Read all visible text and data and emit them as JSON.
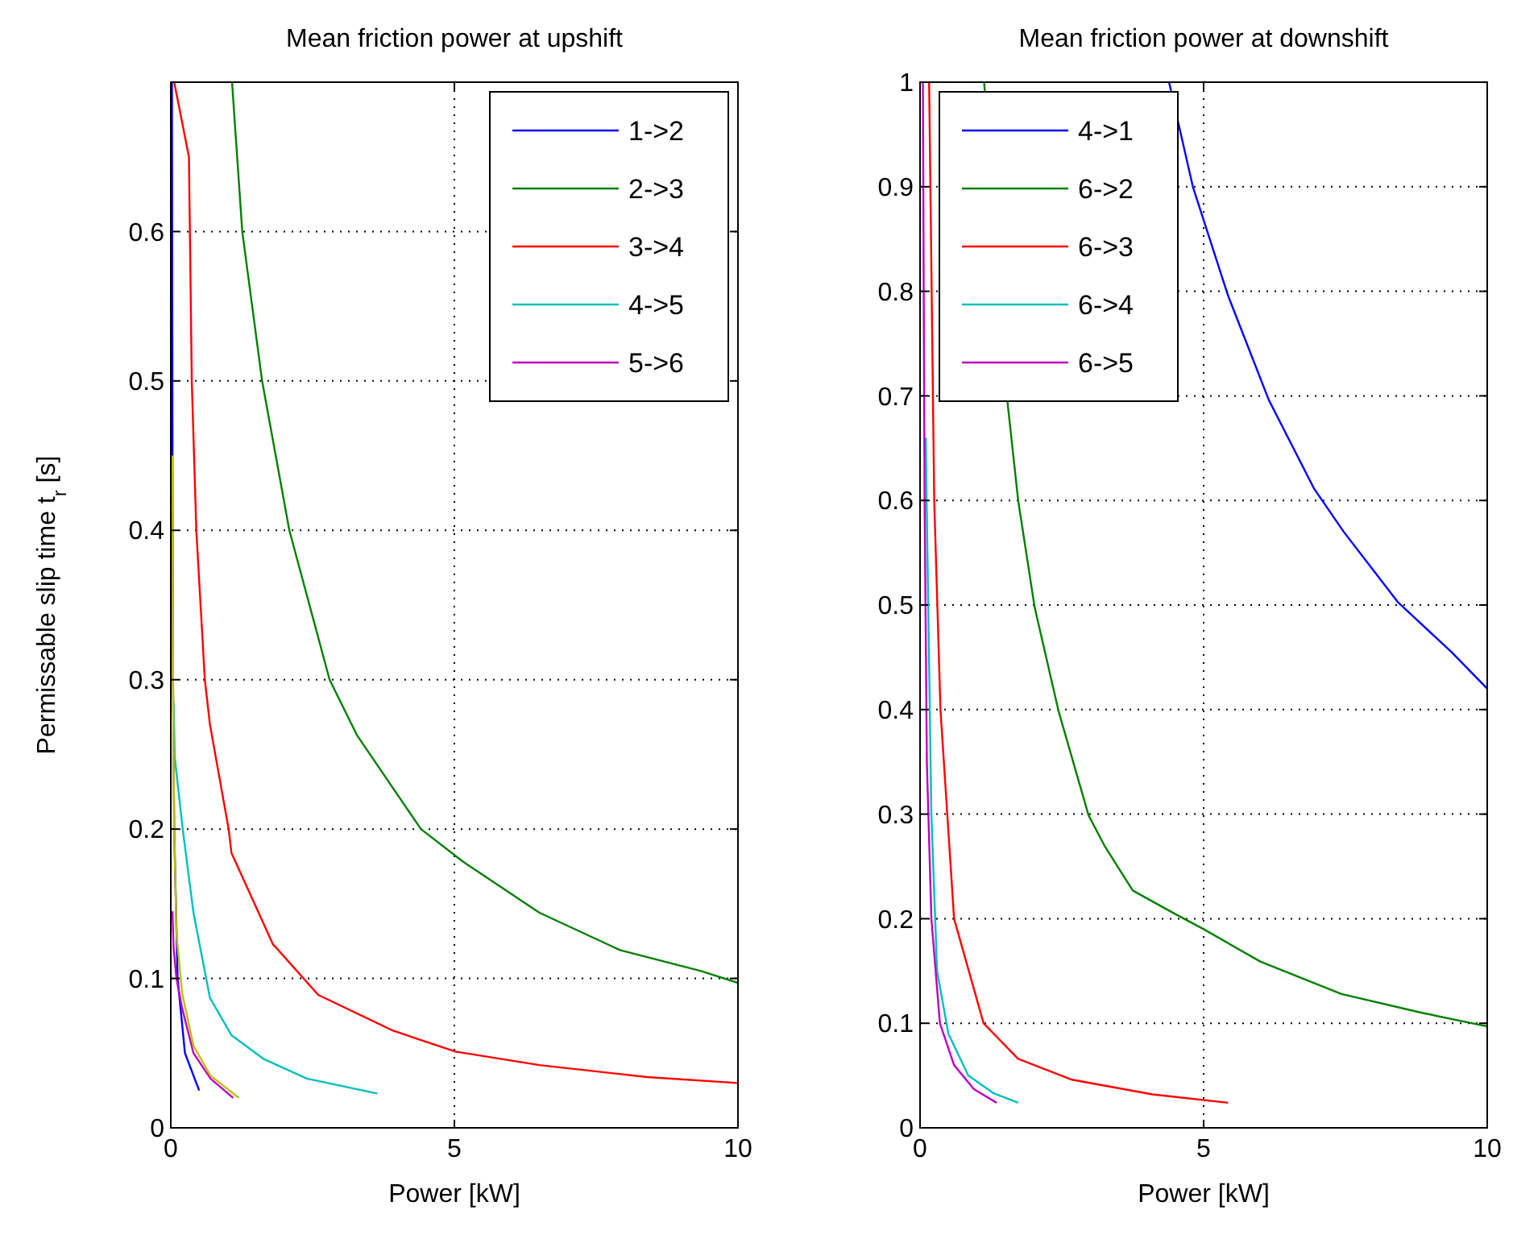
{
  "chart_data": [
    {
      "type": "line",
      "title": "Mean friction power at upshift",
      "xlabel": "Power [kW]",
      "ylabel": "Permissable slip time t$_{r}$ [s]",
      "xlim": [
        0,
        10
      ],
      "ylim": [
        0,
        0.7
      ],
      "xticks": [
        0,
        5,
        10
      ],
      "yticks": [
        0,
        0.1,
        0.2,
        0.3,
        0.4,
        0.5,
        0.6
      ],
      "grid": true,
      "legend": "top right",
      "line_style": "solid",
      "series": [
        {
          "name": "1->2",
          "color": "#0000ff",
          "x": [
            0.02,
            0.03,
            0.04,
            0.06,
            0.12,
            0.25,
            0.5
          ],
          "values": [
            0.7,
            0.45,
            0.3,
            0.2,
            0.1,
            0.05,
            0.025
          ]
        },
        {
          "name": "2->3",
          "color": "#008000",
          "x": [
            1.08,
            1.26,
            1.61,
            2.09,
            2.8,
            3.28,
            4.41,
            5.16,
            6.5,
            7.92,
            9.35,
            10
          ],
          "values": [
            0.7,
            0.6,
            0.5,
            0.4,
            0.3,
            0.263,
            0.2,
            0.178,
            0.144,
            0.119,
            0.105,
            0.097
          ]
        },
        {
          "name": "3->4",
          "color": "#ff0000",
          "x": [
            0.06,
            0.32,
            0.37,
            0.45,
            0.6,
            0.69,
            1.02,
            1.07,
            1.8,
            2.6,
            3.92,
            5.02,
            6.5,
            8.4,
            10
          ],
          "values": [
            0.7,
            0.65,
            0.5,
            0.4,
            0.3,
            0.27,
            0.2,
            0.184,
            0.123,
            0.089,
            0.065,
            0.051,
            0.042,
            0.034,
            0.03
          ]
        },
        {
          "name": "4->5",
          "color": "#00bfbf",
          "x": [
            0.05,
            0.07,
            0.21,
            0.4,
            0.69,
            1.07,
            1.64,
            2.4,
            3.64
          ],
          "values": [
            0.285,
            0.248,
            0.2,
            0.144,
            0.087,
            0.062,
            0.046,
            0.033,
            0.023
          ]
        },
        {
          "name": "5->6",
          "color": "#bf00bf",
          "x": [
            0.03,
            0.05,
            0.1,
            0.2,
            0.4,
            0.7,
            1.1
          ],
          "values": [
            0.145,
            0.12,
            0.1,
            0.08,
            0.05,
            0.033,
            0.02
          ]
        },
        {
          "color": "#bfbf00",
          "x": [
            0.03,
            0.04,
            0.06,
            0.1,
            0.2,
            0.4,
            0.7,
            1.2
          ],
          "values": [
            0.45,
            0.3,
            0.2,
            0.13,
            0.09,
            0.055,
            0.035,
            0.02
          ]
        }
      ]
    },
    {
      "type": "line",
      "title": "Mean friction power at downshift",
      "xlabel": "Power [kW]",
      "xlim": [
        0,
        10
      ],
      "ylim": [
        0,
        1
      ],
      "xticks": [
        0,
        5,
        10
      ],
      "yticks": [
        0,
        0.1,
        0.2,
        0.3,
        0.4,
        0.5,
        0.6,
        0.7,
        0.8,
        0.9,
        1
      ],
      "grid": true,
      "legend": "top left",
      "line_style": "solid",
      "series": [
        {
          "name": "4->1",
          "color": "#0000ff",
          "x": [
            4.39,
            4.81,
            5.43,
            6.15,
            6.95,
            7.47,
            8.42,
            9.37,
            10
          ],
          "values": [
            1,
            0.9,
            0.796,
            0.696,
            0.611,
            0.57,
            0.503,
            0.455,
            0.42
          ]
        },
        {
          "name": "6->2",
          "color": "#008000",
          "x": [
            1.13,
            1.55,
            1.73,
            2.02,
            2.44,
            2.97,
            3.25,
            3.75,
            4.48,
            5,
            6,
            7.43,
            8.85,
            10
          ],
          "values": [
            1,
            0.69,
            0.6,
            0.498,
            0.399,
            0.299,
            0.27,
            0.227,
            0.205,
            0.19,
            0.159,
            0.128,
            0.11,
            0.097
          ]
        },
        {
          "name": "6->3",
          "color": "#ff0000",
          "x": [
            0.16,
            0.25,
            0.36,
            0.6,
            1.12,
            1.73,
            2.68,
            4.1,
            5.43
          ],
          "values": [
            1,
            0.6,
            0.4,
            0.2,
            0.1,
            0.066,
            0.046,
            0.032,
            0.024
          ]
        },
        {
          "name": "6->4",
          "color": "#00bfbf",
          "x": [
            0.1,
            0.13,
            0.2,
            0.3,
            0.5,
            0.85,
            1.3,
            1.73
          ],
          "values": [
            0.66,
            0.55,
            0.3,
            0.15,
            0.09,
            0.05,
            0.033,
            0.024
          ]
        },
        {
          "name": "6->5",
          "color": "#bf00bf",
          "x": [
            0.05,
            0.08,
            0.12,
            0.2,
            0.35,
            0.6,
            0.95,
            1.35
          ],
          "values": [
            1,
            0.6,
            0.35,
            0.2,
            0.1,
            0.06,
            0.037,
            0.024
          ]
        }
      ]
    }
  ]
}
